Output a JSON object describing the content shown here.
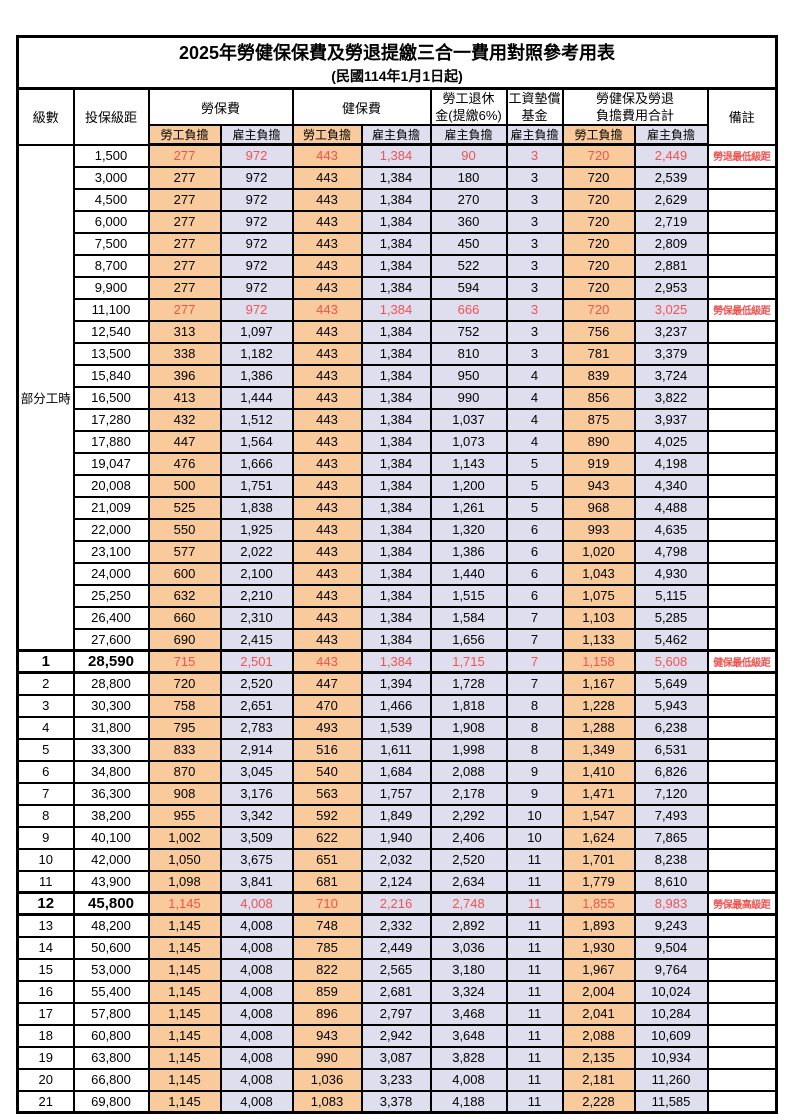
{
  "title": "2025年勞健保保費及勞退提繳三合一費用對照參考用表",
  "subtitle": "(民國114年1月1日起)",
  "columns": {
    "level": "級數",
    "bracket": "投保級距",
    "labor_fee": "勞保費",
    "health_fee": "健保費",
    "pension": [
      "勞工退休",
      "金(提繳6%)"
    ],
    "wage_fund": [
      "工資墊償",
      "基金"
    ],
    "total": [
      "勞健保及勞退",
      "負擔費用合計"
    ],
    "note": "備註",
    "employee_burden": "勞工負擔",
    "employer_burden": "雇主負擔"
  },
  "part_time_label": "部分工時",
  "part_time_span": 23,
  "colors": {
    "employee_bg": "#F9CB9C",
    "employer_bg": "#DFDEEF",
    "highlight_red": "#EF5350",
    "border": "#000000"
  },
  "rows": [
    {
      "level": "",
      "bracket": "1,500",
      "values": [
        "277",
        "972",
        "443",
        "1,384",
        "90",
        "3",
        "720",
        "2,449"
      ],
      "note": "勞退最低級距",
      "red": true
    },
    {
      "level": "",
      "bracket": "3,000",
      "values": [
        "277",
        "972",
        "443",
        "1,384",
        "180",
        "3",
        "720",
        "2,539"
      ]
    },
    {
      "level": "",
      "bracket": "4,500",
      "values": [
        "277",
        "972",
        "443",
        "1,384",
        "270",
        "3",
        "720",
        "2,629"
      ]
    },
    {
      "level": "",
      "bracket": "6,000",
      "values": [
        "277",
        "972",
        "443",
        "1,384",
        "360",
        "3",
        "720",
        "2,719"
      ]
    },
    {
      "level": "",
      "bracket": "7,500",
      "values": [
        "277",
        "972",
        "443",
        "1,384",
        "450",
        "3",
        "720",
        "2,809"
      ]
    },
    {
      "level": "",
      "bracket": "8,700",
      "values": [
        "277",
        "972",
        "443",
        "1,384",
        "522",
        "3",
        "720",
        "2,881"
      ]
    },
    {
      "level": "",
      "bracket": "9,900",
      "values": [
        "277",
        "972",
        "443",
        "1,384",
        "594",
        "3",
        "720",
        "2,953"
      ]
    },
    {
      "level": "",
      "bracket": "11,100",
      "values": [
        "277",
        "972",
        "443",
        "1,384",
        "666",
        "3",
        "720",
        "3,025"
      ],
      "note": "勞保最低級距",
      "red": true
    },
    {
      "level": "",
      "bracket": "12,540",
      "values": [
        "313",
        "1,097",
        "443",
        "1,384",
        "752",
        "3",
        "756",
        "3,237"
      ]
    },
    {
      "level": "",
      "bracket": "13,500",
      "values": [
        "338",
        "1,182",
        "443",
        "1,384",
        "810",
        "3",
        "781",
        "3,379"
      ]
    },
    {
      "level": "",
      "bracket": "15,840",
      "values": [
        "396",
        "1,386",
        "443",
        "1,384",
        "950",
        "4",
        "839",
        "3,724"
      ]
    },
    {
      "level": "",
      "bracket": "16,500",
      "values": [
        "413",
        "1,444",
        "443",
        "1,384",
        "990",
        "4",
        "856",
        "3,822"
      ]
    },
    {
      "level": "",
      "bracket": "17,280",
      "values": [
        "432",
        "1,512",
        "443",
        "1,384",
        "1,037",
        "4",
        "875",
        "3,937"
      ]
    },
    {
      "level": "",
      "bracket": "17,880",
      "values": [
        "447",
        "1,564",
        "443",
        "1,384",
        "1,073",
        "4",
        "890",
        "4,025"
      ]
    },
    {
      "level": "",
      "bracket": "19,047",
      "values": [
        "476",
        "1,666",
        "443",
        "1,384",
        "1,143",
        "5",
        "919",
        "4,198"
      ]
    },
    {
      "level": "",
      "bracket": "20,008",
      "values": [
        "500",
        "1,751",
        "443",
        "1,384",
        "1,200",
        "5",
        "943",
        "4,340"
      ]
    },
    {
      "level": "",
      "bracket": "21,009",
      "values": [
        "525",
        "1,838",
        "443",
        "1,384",
        "1,261",
        "5",
        "968",
        "4,488"
      ]
    },
    {
      "level": "",
      "bracket": "22,000",
      "values": [
        "550",
        "1,925",
        "443",
        "1,384",
        "1,320",
        "6",
        "993",
        "4,635"
      ]
    },
    {
      "level": "",
      "bracket": "23,100",
      "values": [
        "577",
        "2,022",
        "443",
        "1,384",
        "1,386",
        "6",
        "1,020",
        "4,798"
      ]
    },
    {
      "level": "",
      "bracket": "24,000",
      "values": [
        "600",
        "2,100",
        "443",
        "1,384",
        "1,440",
        "6",
        "1,043",
        "4,930"
      ]
    },
    {
      "level": "",
      "bracket": "25,250",
      "values": [
        "632",
        "2,210",
        "443",
        "1,384",
        "1,515",
        "6",
        "1,075",
        "5,115"
      ]
    },
    {
      "level": "",
      "bracket": "26,400",
      "values": [
        "660",
        "2,310",
        "443",
        "1,384",
        "1,584",
        "7",
        "1,103",
        "5,285"
      ]
    },
    {
      "level": "",
      "bracket": "27,600",
      "values": [
        "690",
        "2,415",
        "443",
        "1,384",
        "1,656",
        "7",
        "1,133",
        "5,462"
      ]
    },
    {
      "level": "1",
      "bracket": "28,590",
      "values": [
        "715",
        "2,501",
        "443",
        "1,384",
        "1,715",
        "7",
        "1,158",
        "5,608"
      ],
      "note": "健保最低級距",
      "red": true,
      "bold": true,
      "thick": true
    },
    {
      "level": "2",
      "bracket": "28,800",
      "values": [
        "720",
        "2,520",
        "447",
        "1,394",
        "1,728",
        "7",
        "1,167",
        "5,649"
      ]
    },
    {
      "level": "3",
      "bracket": "30,300",
      "values": [
        "758",
        "2,651",
        "470",
        "1,466",
        "1,818",
        "8",
        "1,228",
        "5,943"
      ]
    },
    {
      "level": "4",
      "bracket": "31,800",
      "values": [
        "795",
        "2,783",
        "493",
        "1,539",
        "1,908",
        "8",
        "1,288",
        "6,238"
      ]
    },
    {
      "level": "5",
      "bracket": "33,300",
      "values": [
        "833",
        "2,914",
        "516",
        "1,611",
        "1,998",
        "8",
        "1,349",
        "6,531"
      ]
    },
    {
      "level": "6",
      "bracket": "34,800",
      "values": [
        "870",
        "3,045",
        "540",
        "1,684",
        "2,088",
        "9",
        "1,410",
        "6,826"
      ]
    },
    {
      "level": "7",
      "bracket": "36,300",
      "values": [
        "908",
        "3,176",
        "563",
        "1,757",
        "2,178",
        "9",
        "1,471",
        "7,120"
      ]
    },
    {
      "level": "8",
      "bracket": "38,200",
      "values": [
        "955",
        "3,342",
        "592",
        "1,849",
        "2,292",
        "10",
        "1,547",
        "7,493"
      ]
    },
    {
      "level": "9",
      "bracket": "40,100",
      "values": [
        "1,002",
        "3,509",
        "622",
        "1,940",
        "2,406",
        "10",
        "1,624",
        "7,865"
      ]
    },
    {
      "level": "10",
      "bracket": "42,000",
      "values": [
        "1,050",
        "3,675",
        "651",
        "2,032",
        "2,520",
        "11",
        "1,701",
        "8,238"
      ]
    },
    {
      "level": "11",
      "bracket": "43,900",
      "values": [
        "1,098",
        "3,841",
        "681",
        "2,124",
        "2,634",
        "11",
        "1,779",
        "8,610"
      ]
    },
    {
      "level": "12",
      "bracket": "45,800",
      "values": [
        "1,145",
        "4,008",
        "710",
        "2,216",
        "2,748",
        "11",
        "1,855",
        "8,983"
      ],
      "note": "勞保最高級距",
      "red": true,
      "bold": true,
      "thick": true
    },
    {
      "level": "13",
      "bracket": "48,200",
      "values": [
        "1,145",
        "4,008",
        "748",
        "2,332",
        "2,892",
        "11",
        "1,893",
        "9,243"
      ]
    },
    {
      "level": "14",
      "bracket": "50,600",
      "values": [
        "1,145",
        "4,008",
        "785",
        "2,449",
        "3,036",
        "11",
        "1,930",
        "9,504"
      ]
    },
    {
      "level": "15",
      "bracket": "53,000",
      "values": [
        "1,145",
        "4,008",
        "822",
        "2,565",
        "3,180",
        "11",
        "1,967",
        "9,764"
      ]
    },
    {
      "level": "16",
      "bracket": "55,400",
      "values": [
        "1,145",
        "4,008",
        "859",
        "2,681",
        "3,324",
        "11",
        "2,004",
        "10,024"
      ]
    },
    {
      "level": "17",
      "bracket": "57,800",
      "values": [
        "1,145",
        "4,008",
        "896",
        "2,797",
        "3,468",
        "11",
        "2,041",
        "10,284"
      ]
    },
    {
      "level": "18",
      "bracket": "60,800",
      "values": [
        "1,145",
        "4,008",
        "943",
        "2,942",
        "3,648",
        "11",
        "2,088",
        "10,609"
      ]
    },
    {
      "level": "19",
      "bracket": "63,800",
      "values": [
        "1,145",
        "4,008",
        "990",
        "3,087",
        "3,828",
        "11",
        "2,135",
        "10,934"
      ]
    },
    {
      "level": "20",
      "bracket": "66,800",
      "values": [
        "1,145",
        "4,008",
        "1,036",
        "3,233",
        "4,008",
        "11",
        "2,181",
        "11,260"
      ]
    },
    {
      "level": "21",
      "bracket": "69,800",
      "values": [
        "1,145",
        "4,008",
        "1,083",
        "3,378",
        "4,188",
        "11",
        "2,228",
        "11,585"
      ]
    }
  ]
}
